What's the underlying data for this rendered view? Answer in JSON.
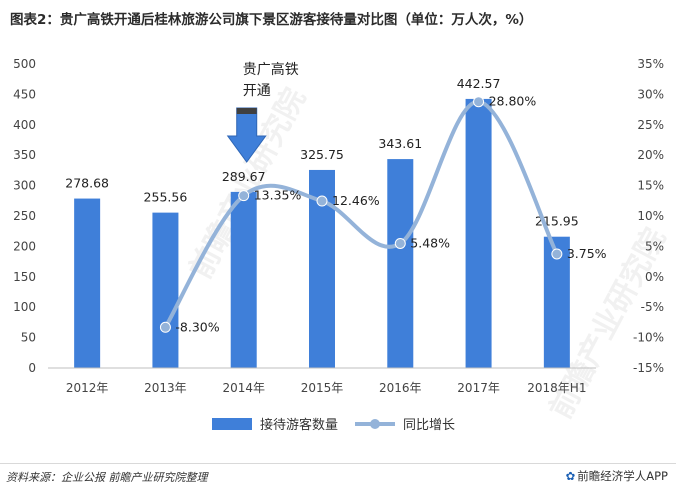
{
  "title": "图表2：贵广高铁开通后桂林旅游公司旗下景区游客接待量对比图（单位：万人次，%）",
  "chart_data": {
    "type": "bar",
    "categories": [
      "2012年",
      "2013年",
      "2014年",
      "2015年",
      "2016年",
      "2017年",
      "2018年H1"
    ],
    "series": [
      {
        "name": "接待游客数量",
        "type": "bar",
        "axis": "left",
        "values": [
          278.68,
          255.56,
          289.67,
          325.75,
          343.61,
          442.57,
          215.95
        ],
        "labels": [
          "278.68",
          "255.56",
          "289.67",
          "325.75",
          "343.61",
          "442.57",
          "215.95"
        ]
      },
      {
        "name": "同比增长",
        "type": "line",
        "axis": "right",
        "values": [
          null,
          -8.3,
          13.35,
          12.46,
          5.48,
          28.8,
          3.75
        ],
        "labels": [
          "",
          "-8.30%",
          "13.35%",
          "12.46%",
          "5.48%",
          "28.80%",
          "3.75%"
        ]
      }
    ],
    "ylim_left": [
      0,
      500
    ],
    "yticks_left": [
      "0",
      "50",
      "100",
      "150",
      "200",
      "250",
      "300",
      "350",
      "400",
      "450",
      "500"
    ],
    "ylim_right": [
      -15,
      35
    ],
    "yticks_right": [
      "-15%",
      "-10%",
      "-5%",
      "0%",
      "5%",
      "10%",
      "15%",
      "20%",
      "25%",
      "30%",
      "35%"
    ],
    "annotation": {
      "text_line1": "贵广高铁",
      "text_line2": "开通",
      "category": "2014年"
    },
    "grid": false,
    "legend_position": "bottom",
    "colors": {
      "bar": "#3f7fd9",
      "line": "#94b3d9",
      "arrow": "#3f7fd9"
    }
  },
  "source": "资料来源：企业公报 前瞻产业研究院整理",
  "brand": {
    "logo": "✿",
    "text": "前瞻经济学人APP"
  },
  "watermark": "前瞻产业研究院"
}
